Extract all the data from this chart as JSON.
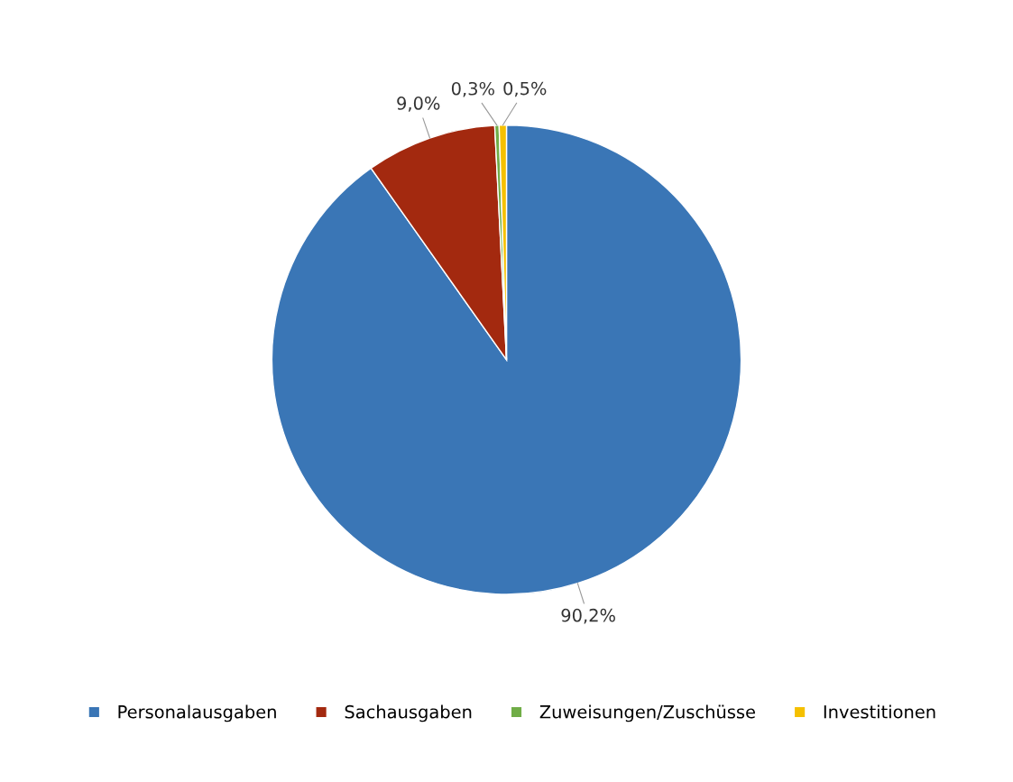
{
  "chart_data": {
    "type": "pie",
    "categories": [
      "Personalausgaben",
      "Sachausgaben",
      "Zuweisungen/Zuschüsse",
      "Investitionen"
    ],
    "values": [
      90.2,
      9.0,
      0.3,
      0.5
    ],
    "value_labels": [
      "90,2%",
      "9,0%",
      "0,3%",
      "0,5%"
    ],
    "colors": [
      "#3a76b6",
      "#a3290f",
      "#70ad47",
      "#f5c000"
    ],
    "legend": "bottom"
  }
}
